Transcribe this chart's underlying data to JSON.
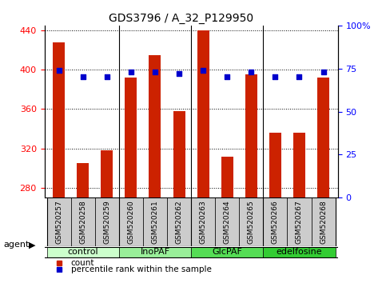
{
  "title": "GDS3796 / A_32_P129950",
  "samples": [
    "GSM520257",
    "GSM520258",
    "GSM520259",
    "GSM520260",
    "GSM520261",
    "GSM520262",
    "GSM520263",
    "GSM520264",
    "GSM520265",
    "GSM520266",
    "GSM520267",
    "GSM520268"
  ],
  "counts": [
    428,
    305,
    318,
    392,
    415,
    358,
    440,
    312,
    395,
    336,
    336,
    392
  ],
  "percentiles": [
    74,
    70,
    70,
    73,
    73,
    72,
    74,
    70,
    73,
    70,
    70,
    73
  ],
  "groups": [
    {
      "label": "control",
      "start": 0,
      "end": 3,
      "color": "#ccffcc"
    },
    {
      "label": "InoPAF",
      "start": 3,
      "end": 6,
      "color": "#99ee99"
    },
    {
      "label": "GlcPAF",
      "start": 6,
      "end": 9,
      "color": "#55dd55"
    },
    {
      "label": "edelfosine",
      "start": 9,
      "end": 12,
      "color": "#33cc33"
    }
  ],
  "ylim_left": [
    270,
    445
  ],
  "ylim_right": [
    0,
    100
  ],
  "yticks_left": [
    280,
    320,
    360,
    400,
    440
  ],
  "yticks_right": [
    0,
    25,
    50,
    75,
    100
  ],
  "bar_color": "#cc2200",
  "dot_color": "#0000cc",
  "bar_width": 0.5,
  "bar_bottom": 270,
  "right_ylabel": "100%",
  "legend_count_label": "count",
  "legend_pct_label": "percentile rank within the sample",
  "group_boundaries": [
    3,
    6,
    9
  ],
  "agent_label": "agent",
  "title_fontsize": 10,
  "tick_fontsize": 8,
  "sample_fontsize": 6.5,
  "legend_fontsize": 7.5,
  "group_fontsize": 8,
  "gray_bg": "#cccccc"
}
